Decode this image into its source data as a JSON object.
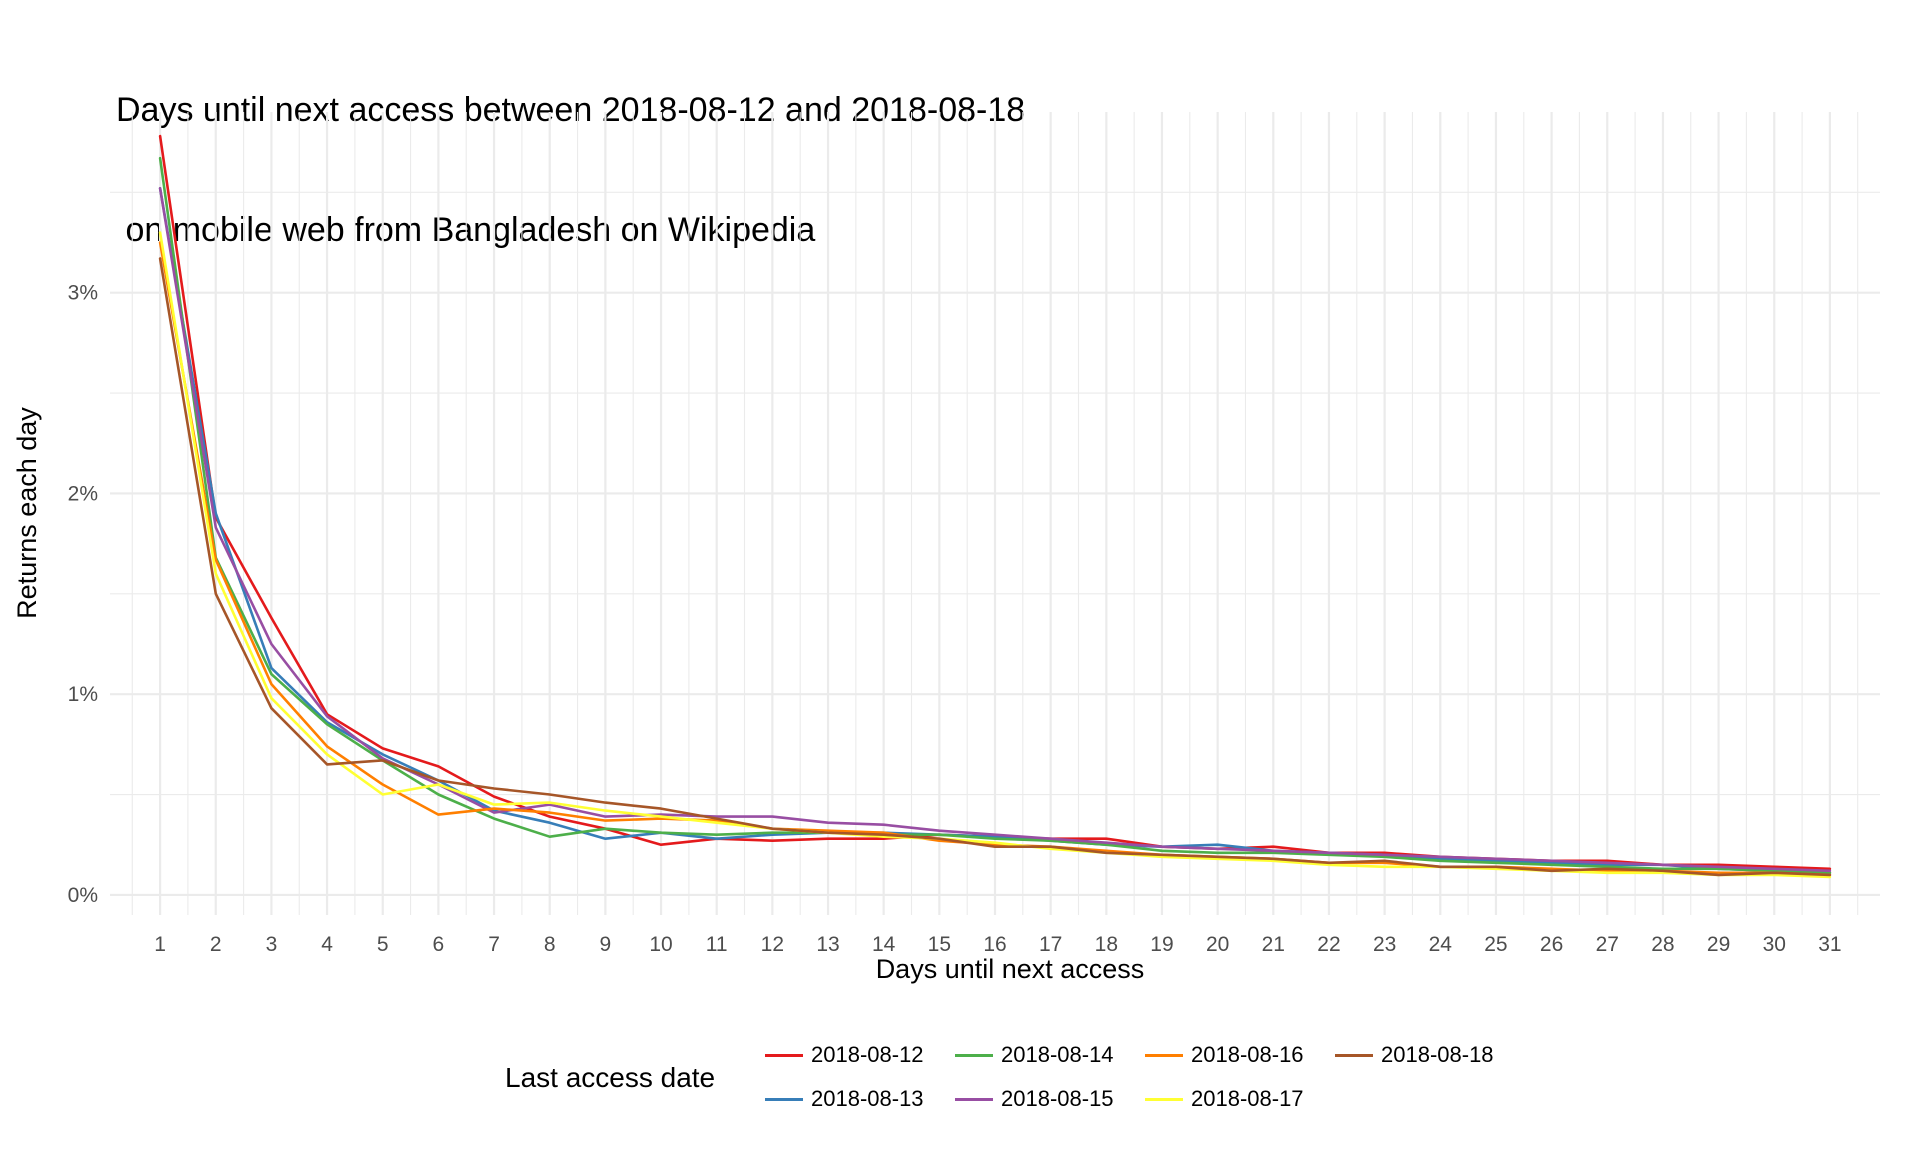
{
  "title_lines": [
    "Days until next access between 2018-08-12 and 2018-08-18",
    " on mobile web from Bangladesh on Wikipedia"
  ],
  "chart_data": {
    "type": "line",
    "title": "Days until next access between 2018-08-12 and 2018-08-18\n on mobile web from Bangladesh on Wikipedia",
    "xlabel": "Days until next access",
    "ylabel": "Returns each day",
    "x": [
      1,
      2,
      3,
      4,
      5,
      6,
      7,
      8,
      9,
      10,
      11,
      12,
      13,
      14,
      15,
      16,
      17,
      18,
      19,
      20,
      21,
      22,
      23,
      24,
      25,
      26,
      27,
      28,
      29,
      30,
      31
    ],
    "y_ticks": [
      "0%",
      "1%",
      "2%",
      "3%"
    ],
    "xlim": [
      0.1,
      31.9
    ],
    "ylim": [
      -0.1,
      3.9
    ],
    "grid": true,
    "legend_position": "bottom",
    "legend_title": "Last access date",
    "series": [
      {
        "name": "2018-08-12",
        "color": "#e41a1c",
        "values": [
          3.78,
          1.88,
          1.38,
          0.9,
          0.73,
          0.64,
          0.49,
          0.39,
          0.33,
          0.25,
          0.28,
          0.27,
          0.28,
          0.28,
          0.3,
          0.29,
          0.28,
          0.28,
          0.24,
          0.23,
          0.24,
          0.21,
          0.21,
          0.19,
          0.18,
          0.17,
          0.17,
          0.15,
          0.15,
          0.14,
          0.13
        ]
      },
      {
        "name": "2018-08-13",
        "color": "#377eb8",
        "values": [
          3.52,
          1.9,
          1.13,
          0.86,
          0.7,
          0.57,
          0.42,
          0.36,
          0.28,
          0.31,
          0.28,
          0.3,
          0.31,
          0.31,
          0.3,
          0.29,
          0.27,
          0.25,
          0.24,
          0.25,
          0.22,
          0.21,
          0.2,
          0.18,
          0.17,
          0.16,
          0.15,
          0.15,
          0.13,
          0.12,
          0.11
        ]
      },
      {
        "name": "2018-08-14",
        "color": "#4daf4a",
        "values": [
          3.67,
          1.68,
          1.1,
          0.85,
          0.67,
          0.5,
          0.38,
          0.29,
          0.33,
          0.31,
          0.3,
          0.31,
          0.31,
          0.3,
          0.3,
          0.28,
          0.27,
          0.25,
          0.22,
          0.21,
          0.21,
          0.2,
          0.19,
          0.17,
          0.16,
          0.15,
          0.14,
          0.13,
          0.13,
          0.12,
          0.11
        ]
      },
      {
        "name": "2018-08-15",
        "color": "#984ea3",
        "values": [
          3.52,
          1.83,
          1.25,
          0.89,
          0.68,
          0.55,
          0.41,
          0.45,
          0.39,
          0.4,
          0.39,
          0.39,
          0.36,
          0.35,
          0.32,
          0.3,
          0.28,
          0.26,
          0.24,
          0.23,
          0.22,
          0.21,
          0.2,
          0.19,
          0.18,
          0.17,
          0.16,
          0.15,
          0.14,
          0.13,
          0.12
        ]
      },
      {
        "name": "2018-08-16",
        "color": "#ff7f00",
        "values": [
          3.25,
          1.67,
          1.05,
          0.74,
          0.55,
          0.4,
          0.43,
          0.41,
          0.37,
          0.38,
          0.37,
          0.33,
          0.32,
          0.31,
          0.27,
          0.25,
          0.24,
          0.22,
          0.2,
          0.19,
          0.18,
          0.16,
          0.16,
          0.14,
          0.14,
          0.13,
          0.12,
          0.12,
          0.11,
          0.11,
          0.1
        ]
      },
      {
        "name": "2018-08-17",
        "color": "#ffff33",
        "values": [
          3.3,
          1.6,
          0.98,
          0.7,
          0.5,
          0.55,
          0.45,
          0.46,
          0.42,
          0.39,
          0.36,
          0.33,
          0.31,
          0.29,
          0.28,
          0.26,
          0.23,
          0.21,
          0.19,
          0.18,
          0.17,
          0.15,
          0.14,
          0.14,
          0.13,
          0.12,
          0.11,
          0.11,
          0.1,
          0.1,
          0.09
        ]
      },
      {
        "name": "2018-08-18",
        "color": "#a65628",
        "values": [
          3.17,
          1.5,
          0.93,
          0.65,
          0.67,
          0.57,
          0.53,
          0.5,
          0.46,
          0.43,
          0.38,
          0.33,
          0.31,
          0.3,
          0.28,
          0.24,
          0.24,
          0.21,
          0.2,
          0.19,
          0.18,
          0.16,
          0.17,
          0.14,
          0.14,
          0.12,
          0.13,
          0.12,
          0.1,
          0.11,
          0.1
        ]
      }
    ]
  }
}
